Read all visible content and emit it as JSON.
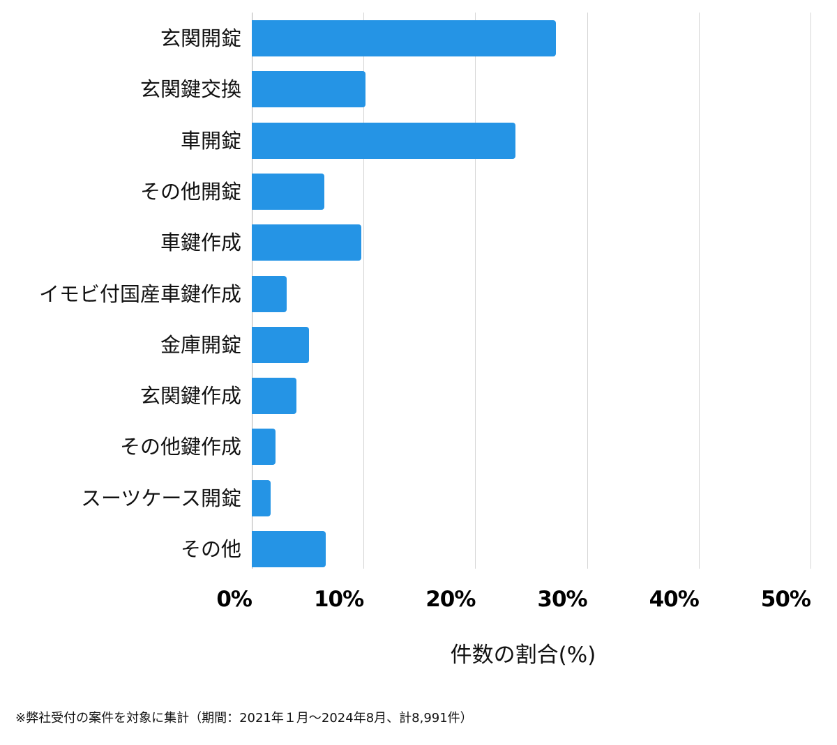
{
  "chart_data": {
    "type": "bar",
    "orientation": "horizontal",
    "categories": [
      "玄関開錠",
      "玄関鍵交換",
      "車開錠",
      "その他開錠",
      "車鍵作成",
      "イモビ付国産車鍵作成",
      "金庫開錠",
      "玄関鍵作成",
      "その他鍵作成",
      "スーツケース開錠",
      "その他"
    ],
    "values": [
      27.2,
      10.2,
      23.6,
      6.5,
      9.8,
      3.1,
      5.1,
      4.0,
      2.1,
      1.7,
      6.6
    ],
    "title": "",
    "xlabel": "件数の割合(%)",
    "ylabel": "",
    "xlim": [
      0,
      50
    ],
    "xticks": [
      "0%",
      "10%",
      "20%",
      "30%",
      "40%",
      "50%"
    ],
    "grid": true,
    "legend": null,
    "bar_color": "#2594e5",
    "note": "※弊社受付の案件を対象に集計（期間：2021年１月～2024年8月、計8,991件）"
  },
  "colors": {
    "bar": "#2594e5",
    "grid": "#d6d6d6",
    "axis": "#b0b0b0"
  }
}
